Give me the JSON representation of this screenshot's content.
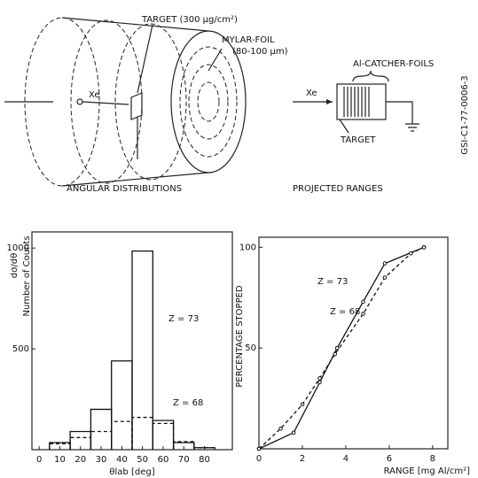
{
  "diagram": {
    "target_label": "TARGET (300 μg/cm²)",
    "foil_label": "MYLAR-FOIL",
    "foil_thickness": "(80-100 μm)",
    "beam_left": "Xe",
    "caption_left": "ANGULAR DISTRIBUTIONS",
    "beam_right": "Xe",
    "catcher_label": "Al-CATCHER-FOILS",
    "target_right": "TARGET",
    "caption_right": "PROJECTED RANGES",
    "figure_id": "GSI-C1-77-0006-3"
  },
  "chart_data": [
    {
      "type": "histogram",
      "ylabel": "dσ/dθ",
      "ylabel2": "Number of Counts",
      "xlabel": "θlab [deg]",
      "bins": [
        5,
        15,
        25,
        35,
        45,
        55,
        65,
        75,
        85
      ],
      "series": [
        {
          "name": "Z = 73",
          "color": "#111111",
          "dash": false,
          "values": [
            35,
            90,
            200,
            440,
            985,
            145,
            35,
            10
          ]
        },
        {
          "name": "Z = 68",
          "color": "#111111",
          "dash": true,
          "values": [
            30,
            60,
            90,
            140,
            160,
            130,
            40,
            10
          ]
        }
      ],
      "xlim": [
        -3.5,
        93.5
      ],
      "ylim": [
        0,
        1080
      ],
      "xticks": [
        0,
        10,
        20,
        30,
        40,
        50,
        60,
        70,
        80
      ],
      "yticks": [
        500,
        1000
      ]
    },
    {
      "type": "line",
      "ylabel": "PERCENTAGE STOPPED",
      "xlabel": "RANGE [mg Al/cm²]",
      "series": [
        {
          "name": "Z = 73",
          "color": "#111111",
          "dash": false,
          "x": [
            0,
            1.6,
            2.8,
            3.6,
            4.8,
            5.8,
            7.6
          ],
          "values": [
            0,
            8,
            33,
            50,
            73,
            92,
            100
          ]
        },
        {
          "name": "Z = 68",
          "color": "#111111",
          "dash": true,
          "x": [
            0,
            1,
            2,
            2.8,
            3.5,
            4.8,
            5.8,
            7,
            7.6
          ],
          "values": [
            0,
            10,
            22,
            35,
            47,
            67,
            85,
            97,
            100
          ]
        }
      ],
      "xlim": [
        0,
        8.7
      ],
      "ylim": [
        0,
        105
      ],
      "xticks": [
        0,
        2,
        4,
        6,
        8
      ],
      "yticks": [
        50,
        100
      ]
    }
  ]
}
